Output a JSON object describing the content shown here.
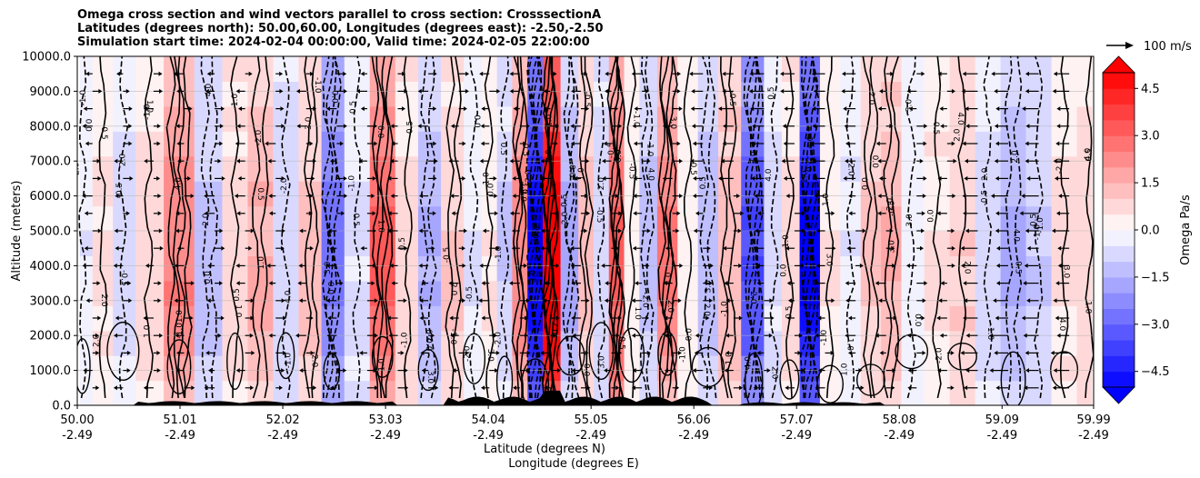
{
  "chart_data": {
    "type": "heatmap",
    "title_lines": [
      "Omega cross section and wind vectors parallel to cross section: CrosssectionA",
      "Latitudes (degrees north): 50.00,60.00, Longitudes (degrees east): -2.50,-2.50",
      "Simulation start time: 2024-02-04 00:00:00, Valid time: 2024-02-05 22:00:00"
    ],
    "ylabel": "Altitude (meters)",
    "xlabel_lines": [
      "Latitude (degrees N)",
      "Longitude (degrees E)"
    ],
    "ylim": [
      0,
      10000
    ],
    "yticks": [
      "0.0",
      "1000.0",
      "2000.0",
      "3000.0",
      "4000.0",
      "5000.0",
      "6000.0",
      "7000.0",
      "8000.0",
      "9000.0",
      "10000.0"
    ],
    "xticks": [
      {
        "lat": "50.00",
        "lon": "-2.49"
      },
      {
        "lat": "51.01",
        "lon": "-2.49"
      },
      {
        "lat": "52.02",
        "lon": "-2.49"
      },
      {
        "lat": "53.03",
        "lon": "-2.49"
      },
      {
        "lat": "54.04",
        "lon": "-2.49"
      },
      {
        "lat": "55.05",
        "lon": "-2.49"
      },
      {
        "lat": "56.06",
        "lon": "-2.49"
      },
      {
        "lat": "57.07",
        "lon": "-2.49"
      },
      {
        "lat": "58.08",
        "lon": "-2.49"
      },
      {
        "lat": "59.09",
        "lon": "-2.49"
      },
      {
        "lat": "59.99",
        "lon": "-2.49"
      }
    ],
    "xlim": [
      50.0,
      59.99
    ],
    "grid": true,
    "colorbar": {
      "label": "Omega Pa/s",
      "min": -5.0,
      "max": 5.0,
      "ticks": [
        "−4.5",
        "−3.0",
        "−1.5",
        "0.0",
        "1.5",
        "3.0",
        "4.5"
      ],
      "extend": "both",
      "colormap": "bwr",
      "levels": 20
    },
    "quiver_key": "100 m/s",
    "omega_columns": [
      {
        "lat": 50.05,
        "value": -0.4
      },
      {
        "lat": 50.25,
        "value": 0.6
      },
      {
        "lat": 50.45,
        "value": -0.7
      },
      {
        "lat": 50.7,
        "value": 0.9
      },
      {
        "lat": 51.0,
        "value": 2.5
      },
      {
        "lat": 51.3,
        "value": -1.2
      },
      {
        "lat": 51.55,
        "value": 0.8
      },
      {
        "lat": 51.8,
        "value": 1.6
      },
      {
        "lat": 52.05,
        "value": -0.8
      },
      {
        "lat": 52.3,
        "value": 1.3
      },
      {
        "lat": 52.5,
        "value": -2.8
      },
      {
        "lat": 52.75,
        "value": -0.6
      },
      {
        "lat": 53.0,
        "value": 3.2
      },
      {
        "lat": 53.25,
        "value": 0.7
      },
      {
        "lat": 53.45,
        "value": -1.5
      },
      {
        "lat": 53.7,
        "value": 1.1
      },
      {
        "lat": 53.9,
        "value": -0.5
      },
      {
        "lat": 54.05,
        "value": 0.5
      },
      {
        "lat": 54.2,
        "value": -1.0
      },
      {
        "lat": 54.35,
        "value": 2.4
      },
      {
        "lat": 54.5,
        "value": -5.2
      },
      {
        "lat": 54.65,
        "value": 5.6
      },
      {
        "lat": 54.85,
        "value": -1.8
      },
      {
        "lat": 55.0,
        "value": 1.3
      },
      {
        "lat": 55.15,
        "value": -0.9
      },
      {
        "lat": 55.3,
        "value": 3.4
      },
      {
        "lat": 55.45,
        "value": 0.3
      },
      {
        "lat": 55.6,
        "value": -1.3
      },
      {
        "lat": 55.8,
        "value": 2.6
      },
      {
        "lat": 56.0,
        "value": 0.4
      },
      {
        "lat": 56.2,
        "value": -1.4
      },
      {
        "lat": 56.4,
        "value": 1.5
      },
      {
        "lat": 56.65,
        "value": -3.6
      },
      {
        "lat": 56.85,
        "value": -0.6
      },
      {
        "lat": 57.0,
        "value": 0.8
      },
      {
        "lat": 57.2,
        "value": -5.3
      },
      {
        "lat": 57.4,
        "value": 0.5
      },
      {
        "lat": 57.6,
        "value": -0.5
      },
      {
        "lat": 57.8,
        "value": 1.2
      },
      {
        "lat": 58.0,
        "value": 1.6
      },
      {
        "lat": 58.2,
        "value": -0.4
      },
      {
        "lat": 58.45,
        "value": 0.5
      },
      {
        "lat": 58.7,
        "value": 1.0
      },
      {
        "lat": 58.95,
        "value": -0.7
      },
      {
        "lat": 59.2,
        "value": -1.6
      },
      {
        "lat": 59.45,
        "value": -1.0
      },
      {
        "lat": 59.7,
        "value": 0.6
      },
      {
        "lat": 59.95,
        "value": 0.8
      }
    ],
    "contour_labels": [
      "-1.0",
      "0.0",
      "1.0",
      "2.0",
      "4.0",
      "-0.5",
      "0.5",
      "3.0",
      "-2.0"
    ],
    "colors": {
      "positive_max": "#ff0000",
      "negative_max": "#0000ff",
      "neutral": "#ffffff",
      "contour": "#000000",
      "grid": "#b0b0b0",
      "terrain": "#000000"
    }
  }
}
